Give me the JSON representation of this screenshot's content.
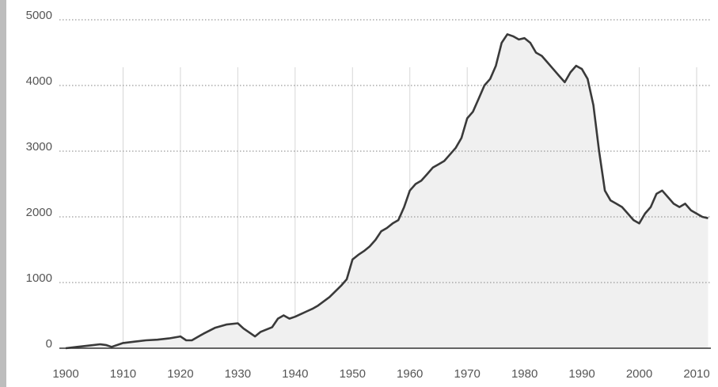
{
  "chart_data": {
    "type": "area",
    "title": "",
    "xlabel": "",
    "ylabel": "",
    "xlim": [
      1900,
      2013
    ],
    "ylim": [
      0,
      5000
    ],
    "grid": {
      "horizontal": "dotted",
      "vertical": "decade-lines"
    },
    "legend": "none",
    "colors": {
      "line": "#3a3a3a",
      "fill": "#f0f0f0",
      "grid": "#9a9a9a",
      "vgrid": "#d6d6d6",
      "axis": "#333333",
      "left_bar": "#bdbdbd"
    },
    "yticks": [
      0,
      1000,
      2000,
      3000,
      4000,
      5000
    ],
    "ytick_labels": [
      "0",
      "1000",
      "2000",
      "3000",
      "4000",
      "5000"
    ],
    "xticks": [
      1900,
      1910,
      1920,
      1930,
      1940,
      1950,
      1960,
      1970,
      1980,
      1990,
      2000,
      2010
    ],
    "xtick_labels": [
      "1900",
      "1910",
      "1920",
      "1930",
      "1940",
      "1950",
      "1960",
      "1970",
      "1980",
      "1990",
      "2000",
      "2010"
    ],
    "series": [
      {
        "x": [
          1900,
          1902,
          1904,
          1906,
          1907,
          1908,
          1910,
          1912,
          1914,
          1916,
          1918,
          1920,
          1921,
          1922,
          1924,
          1926,
          1928,
          1930,
          1931,
          1932,
          1933,
          1934,
          1936,
          1937,
          1938,
          1939,
          1940,
          1941,
          1942,
          1943,
          1944,
          1946,
          1948,
          1949,
          1950,
          1951,
          1952,
          1953,
          1954,
          1955,
          1956,
          1957,
          1958,
          1959,
          1960,
          1961,
          1962,
          1963,
          1964,
          1965,
          1966,
          1967,
          1968,
          1969,
          1970,
          1971,
          1972,
          1973,
          1974,
          1975,
          1976,
          1977,
          1978,
          1979,
          1980,
          1981,
          1982,
          1983,
          1984,
          1985,
          1986,
          1987,
          1988,
          1989,
          1990,
          1991,
          1992,
          1993,
          1994,
          1995,
          1996,
          1997,
          1998,
          1999,
          2000,
          2001,
          2002,
          2003,
          2004,
          2005,
          2006,
          2007,
          2008,
          2009,
          2010,
          2011,
          2012
        ],
        "y": [
          0,
          20,
          40,
          60,
          50,
          20,
          80,
          100,
          120,
          130,
          150,
          180,
          120,
          120,
          220,
          310,
          360,
          380,
          300,
          240,
          180,
          250,
          320,
          450,
          500,
          450,
          480,
          520,
          560,
          600,
          650,
          780,
          950,
          1050,
          1350,
          1420,
          1480,
          1550,
          1650,
          1780,
          1830,
          1900,
          1950,
          2150,
          2400,
          2500,
          2550,
          2650,
          2750,
          2800,
          2850,
          2950,
          3050,
          3200,
          3500,
          3600,
          3800,
          4000,
          4100,
          4300,
          4650,
          4780,
          4750,
          4700,
          4720,
          4650,
          4500,
          4450,
          4350,
          4250,
          4150,
          4050,
          4200,
          4300,
          4250,
          4100,
          3700,
          3000,
          2400,
          2250,
          2200,
          2150,
          2050,
          1950,
          1900,
          2050,
          2150,
          2350,
          2400,
          2300,
          2200,
          2150,
          2200,
          2100,
          2050,
          2000,
          1980
        ]
      }
    ]
  }
}
